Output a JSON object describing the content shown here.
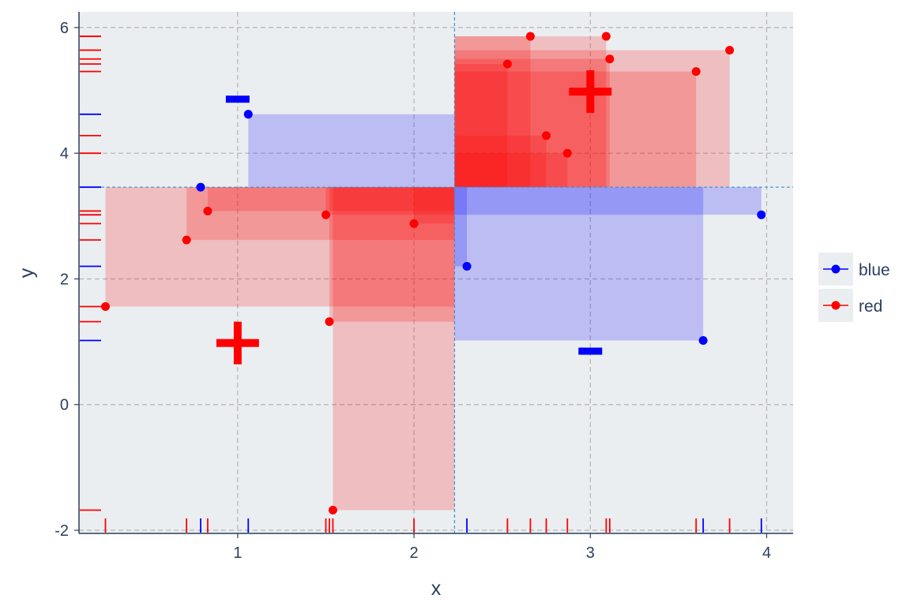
{
  "chart_data": {
    "type": "scatter",
    "title": "",
    "xlabel": "x",
    "ylabel": "y",
    "xlim": [
      0.1,
      4.15
    ],
    "ylim": [
      -2.05,
      6.25
    ],
    "x_ticks": [
      1,
      2,
      3,
      4
    ],
    "x_tick_labels": [
      "1",
      "2",
      "3",
      "4"
    ],
    "y_ticks": [
      -2,
      0,
      2,
      4,
      6
    ],
    "y_tick_labels": [
      "-2",
      "0",
      "2",
      "4",
      "6"
    ],
    "grid": true,
    "legend_position": "right",
    "reference_point": {
      "x": 2.23,
      "y": 3.46
    },
    "series": [
      {
        "name": "blue",
        "color": "#0000ff",
        "points": [
          {
            "x": 0.79,
            "y": 3.46
          },
          {
            "x": 1.06,
            "y": 4.62
          },
          {
            "x": 2.3,
            "y": 2.2
          },
          {
            "x": 3.64,
            "y": 1.02
          },
          {
            "x": 3.97,
            "y": 3.02
          }
        ],
        "marker": {
          "x": 1.0,
          "y": 4.86,
          "symbol": "minus"
        },
        "centroid_marker": {
          "x": 3.0,
          "y": 0.85,
          "symbol": "minus"
        }
      },
      {
        "name": "red",
        "color": "#ff0000",
        "points": [
          {
            "x": 0.25,
            "y": 1.56
          },
          {
            "x": 0.71,
            "y": 2.62
          },
          {
            "x": 0.83,
            "y": 3.08
          },
          {
            "x": 1.5,
            "y": 3.02
          },
          {
            "x": 1.52,
            "y": 1.32
          },
          {
            "x": 1.54,
            "y": -1.68
          },
          {
            "x": 2.0,
            "y": 2.88
          },
          {
            "x": 2.53,
            "y": 5.42
          },
          {
            "x": 2.66,
            "y": 5.86
          },
          {
            "x": 2.75,
            "y": 4.28
          },
          {
            "x": 2.87,
            "y": 4.0
          },
          {
            "x": 3.09,
            "y": 5.86
          },
          {
            "x": 3.11,
            "y": 5.5
          },
          {
            "x": 3.6,
            "y": 5.3
          },
          {
            "x": 3.79,
            "y": 5.64
          }
        ],
        "plus_markers": [
          {
            "x": 1.0,
            "y": 0.98
          },
          {
            "x": 3.0,
            "y": 4.98
          }
        ]
      }
    ]
  }
}
